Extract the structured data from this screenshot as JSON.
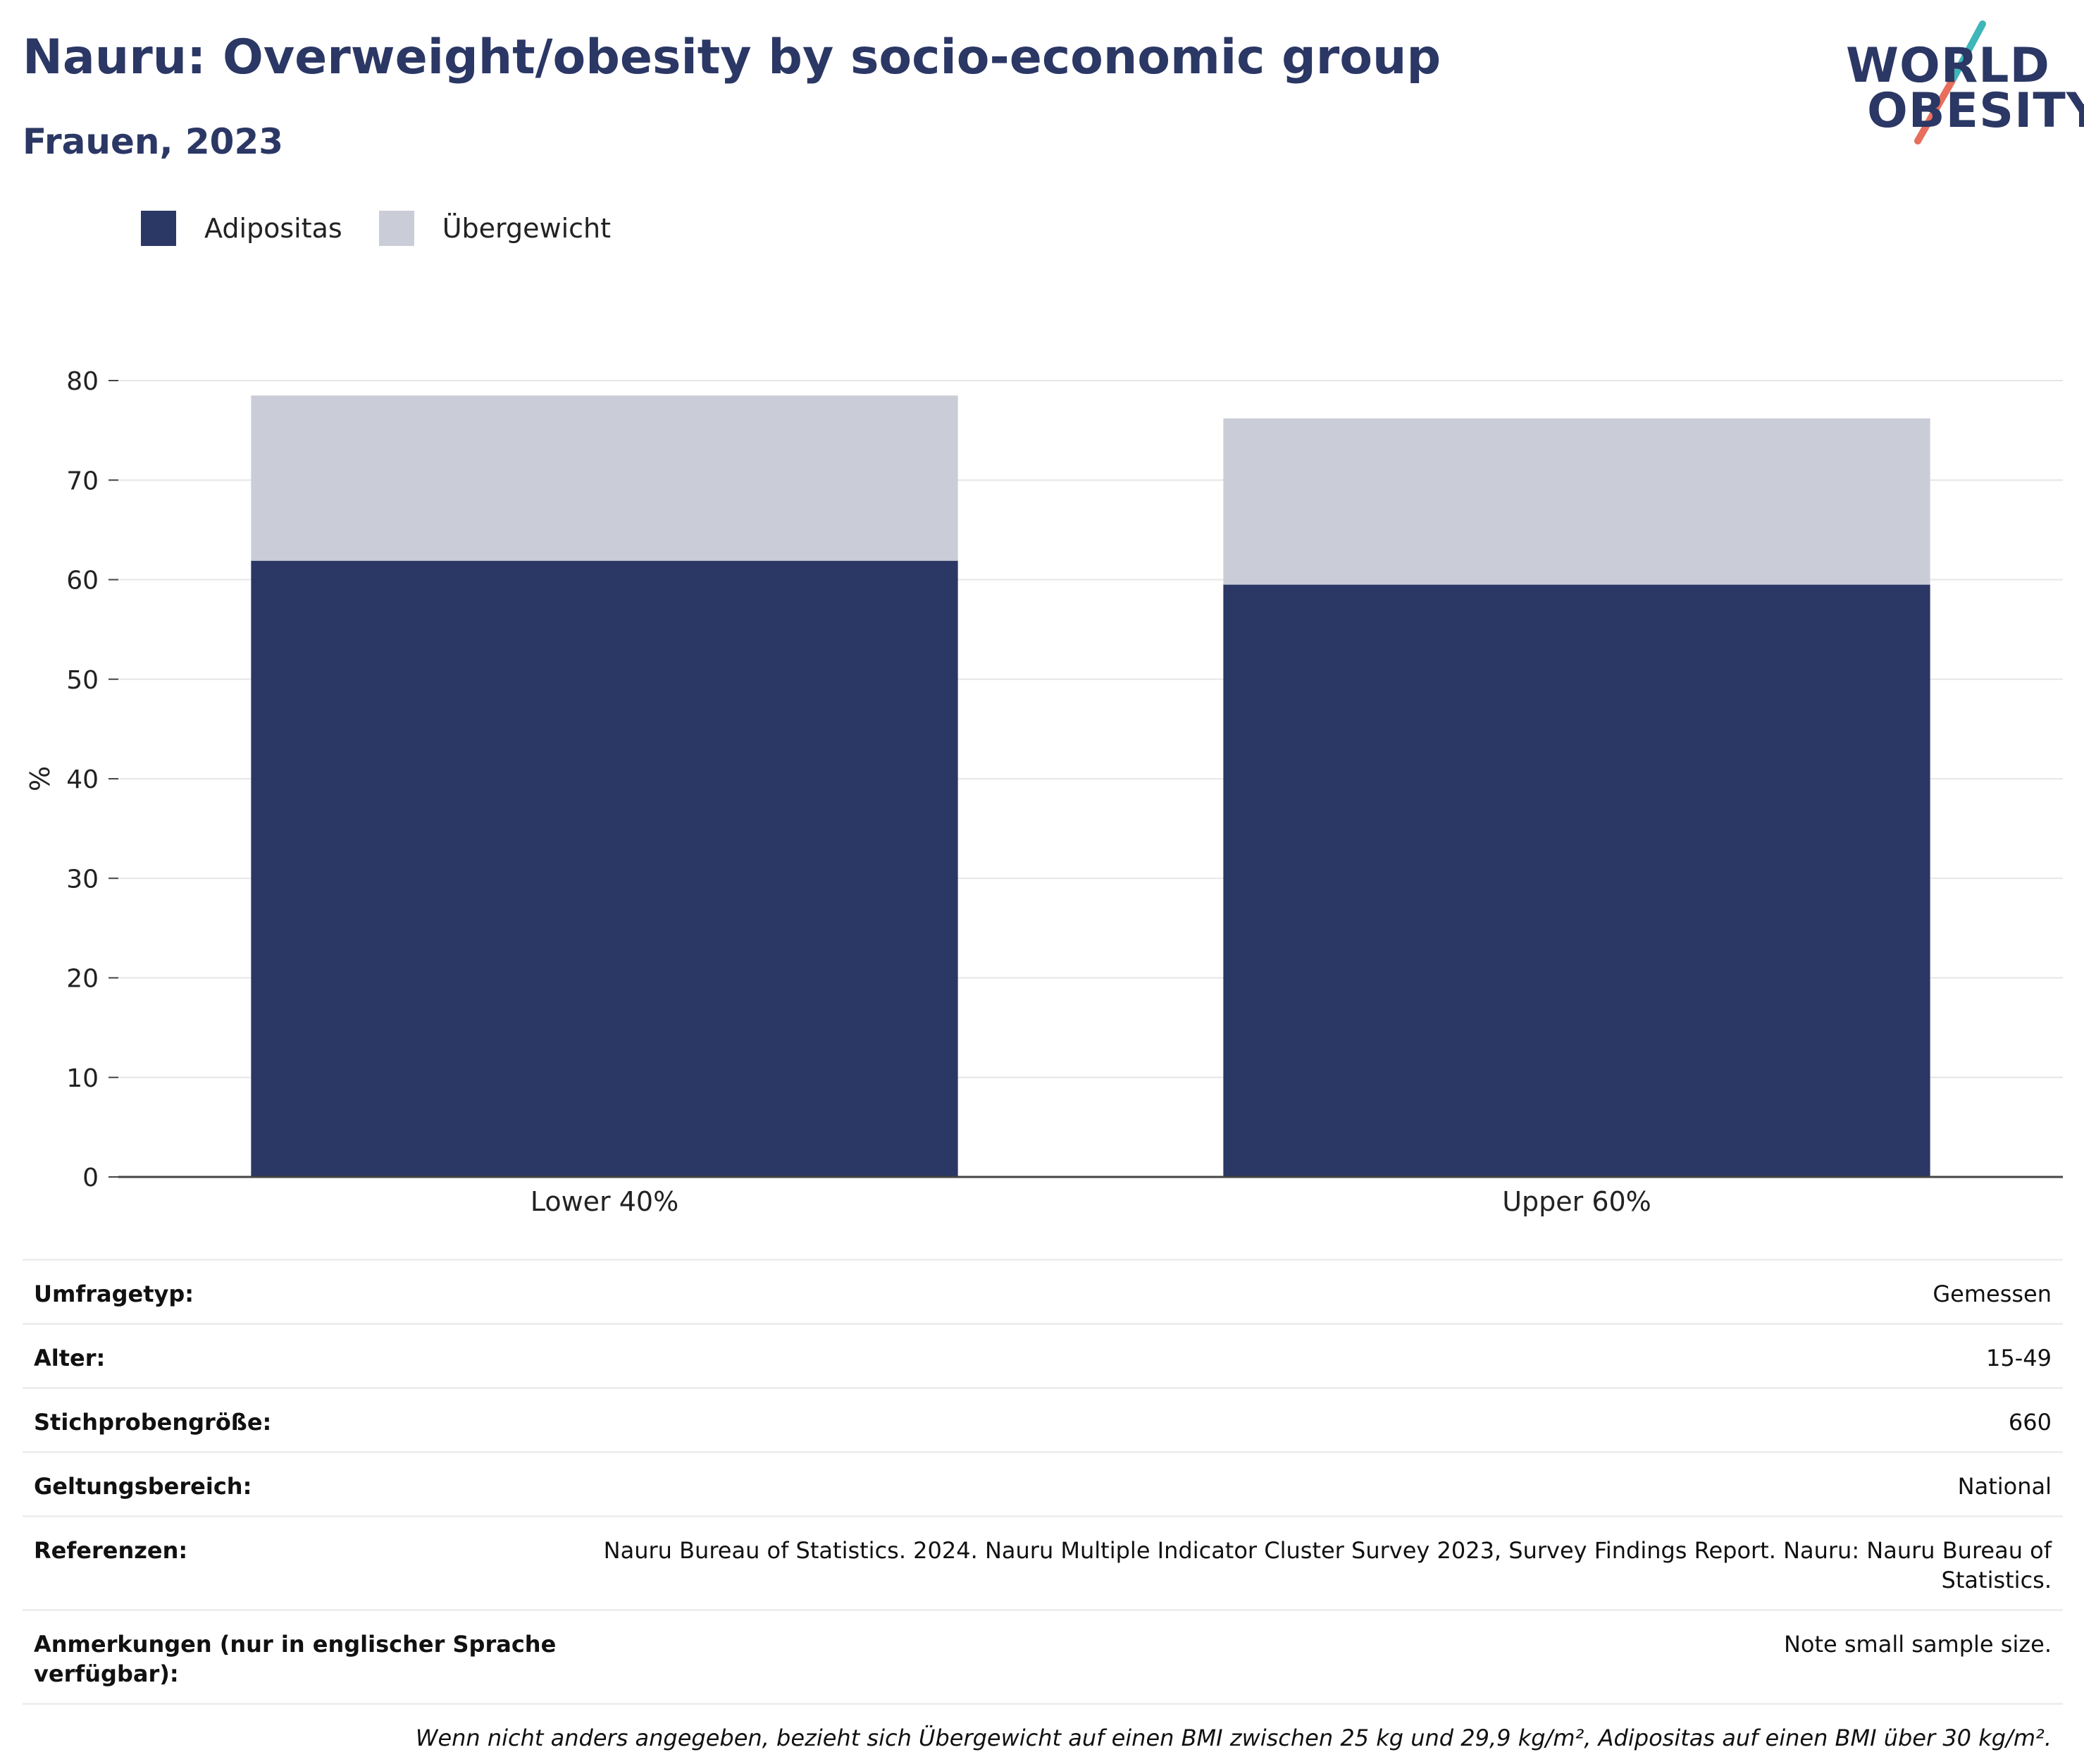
{
  "header": {
    "title": "Nauru: Overweight/obesity by socio-economic group",
    "subtitle": "Frauen, 2023"
  },
  "logo": {
    "line1": "WORLD",
    "line2": "OBESITY",
    "colors": {
      "text": "#2b3764",
      "slash_top": "#3fb6b8",
      "slash_bottom": "#e76f5c"
    }
  },
  "legend": [
    {
      "label": "Adipositas",
      "color": "#2b3764"
    },
    {
      "label": "Übergewicht",
      "color": "#cacdd8"
    }
  ],
  "chart_data": {
    "type": "bar",
    "stacked": true,
    "categories": [
      "Lower 40%",
      "Upper 60%"
    ],
    "series": [
      {
        "name": "Adipositas",
        "values": [
          61.9,
          59.5
        ],
        "color": "#2b3764"
      },
      {
        "name": "Übergewicht",
        "values": [
          16.6,
          16.7
        ],
        "color": "#cacdd8"
      }
    ],
    "ylabel": "%",
    "ylim": [
      0,
      80
    ],
    "yticks": [
      0,
      10,
      20,
      30,
      40,
      50,
      60,
      70,
      80
    ],
    "grid": true
  },
  "metadata": [
    {
      "label": "Umfragetyp:",
      "value": "Gemessen"
    },
    {
      "label": "Alter:",
      "value": "15-49"
    },
    {
      "label": "Stichprobengröße:",
      "value": "660"
    },
    {
      "label": "Geltungsbereich:",
      "value": "National"
    },
    {
      "label": "Referenzen:",
      "value": "Nauru Bureau of Statistics. 2024. Nauru Multiple Indicator Cluster Survey 2023, Survey Findings Report. Nauru: Nauru Bureau of Statistics."
    },
    {
      "label": "Anmerkungen (nur in englischer Sprache verfügbar):",
      "value": "Note small sample size."
    }
  ],
  "footnote": "Wenn nicht anders angegeben, bezieht sich Übergewicht auf einen BMI zwischen 25 kg und 29,9 kg/m², Adipositas auf einen BMI über 30 kg/m²."
}
